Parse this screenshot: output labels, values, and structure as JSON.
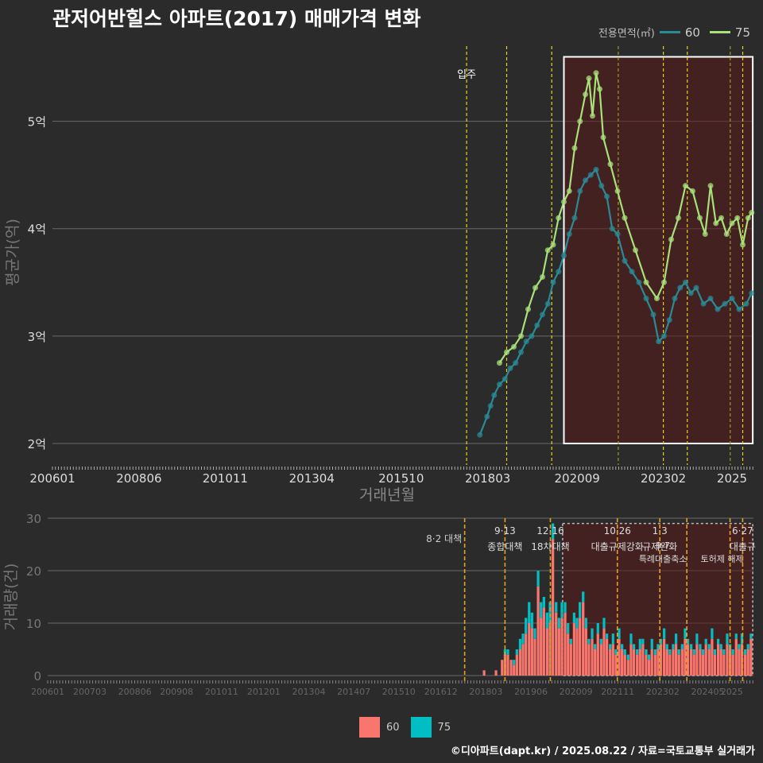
{
  "title": "관저어반힐스 아파트(2017) 매매가격 변화",
  "legend_top": {
    "title": "전용면적(㎡)",
    "items": [
      {
        "label": "60",
        "color": "#2a8a96"
      },
      {
        "label": "75",
        "color": "#a8e07a"
      }
    ]
  },
  "legend_bottom": {
    "items": [
      {
        "label": "60",
        "color": "#f8766d"
      },
      {
        "label": "75",
        "color": "#00bfc4"
      }
    ]
  },
  "footer": "©디아파트(dapt.kr) / 2025.08.22 / 자료=국토교통부 실거래가",
  "chart_data": [
    {
      "type": "line",
      "title": "관저어반힐스 아파트(2017) 매매가격 변화",
      "xlabel": "거래년월",
      "ylabel": "평균가(억)",
      "xlim": [
        2006.0,
        2025.6
      ],
      "ylim": [
        1.8,
        5.7
      ],
      "x_ticks": [
        {
          "label": "200601",
          "value": 2006.0
        },
        {
          "label": "200806",
          "value": 2008.42
        },
        {
          "label": "201011",
          "value": 2010.83
        },
        {
          "label": "201304",
          "value": 2013.25
        },
        {
          "label": "201510",
          "value": 2015.75
        },
        {
          "label": "201803",
          "value": 2018.17
        },
        {
          "label": "202009",
          "value": 2020.67
        },
        {
          "label": "202302",
          "value": 2023.08
        },
        {
          "label": "2025",
          "value": 2025.0
        }
      ],
      "y_ticks": [
        {
          "label": "2억",
          "value": 2
        },
        {
          "label": "3억",
          "value": 3
        },
        {
          "label": "4억",
          "value": 4
        },
        {
          "label": "5억",
          "value": 5
        }
      ],
      "policy_lines": [
        2017.58,
        2018.7,
        2019.96,
        2021.82,
        2023.08,
        2023.75,
        2024.95,
        2025.3
      ],
      "annotation": {
        "text": "입주",
        "x": 2017.58,
        "y": 5.45
      },
      "highlight": {
        "x0": 2020.3,
        "x1": 2025.58,
        "y0": 2.0,
        "y1": 5.6
      },
      "series": [
        {
          "name": "60",
          "color": "#2a8a96",
          "x": [
            2017.95,
            2018.15,
            2018.25,
            2018.35,
            2018.5,
            2018.65,
            2018.8,
            2018.95,
            2019.1,
            2019.25,
            2019.4,
            2019.55,
            2019.7,
            2019.85,
            2020.0,
            2020.15,
            2020.3,
            2020.45,
            2020.6,
            2020.75,
            2020.9,
            2021.05,
            2021.2,
            2021.35,
            2021.5,
            2021.65,
            2021.8,
            2022.0,
            2022.2,
            2022.4,
            2022.6,
            2022.8,
            2022.95,
            2023.1,
            2023.25,
            2023.4,
            2023.55,
            2023.7,
            2023.85,
            2024.0,
            2024.2,
            2024.4,
            2024.6,
            2024.8,
            2025.0,
            2025.2,
            2025.4,
            2025.55
          ],
          "y": [
            2.08,
            2.25,
            2.35,
            2.45,
            2.55,
            2.6,
            2.7,
            2.75,
            2.85,
            2.95,
            3.0,
            3.1,
            3.2,
            3.3,
            3.5,
            3.6,
            3.75,
            3.95,
            4.1,
            4.35,
            4.45,
            4.5,
            4.55,
            4.4,
            4.3,
            4.0,
            3.95,
            3.7,
            3.6,
            3.5,
            3.35,
            3.2,
            2.95,
            3.0,
            3.15,
            3.35,
            3.45,
            3.5,
            3.4,
            3.45,
            3.3,
            3.35,
            3.25,
            3.3,
            3.35,
            3.25,
            3.3,
            3.4
          ]
        },
        {
          "name": "75",
          "color": "#a8e07a",
          "x": [
            2018.5,
            2018.7,
            2018.9,
            2019.1,
            2019.3,
            2019.5,
            2019.7,
            2019.85,
            2020.0,
            2020.15,
            2020.3,
            2020.45,
            2020.6,
            2020.75,
            2020.9,
            2021.0,
            2021.1,
            2021.2,
            2021.3,
            2021.4,
            2021.6,
            2021.8,
            2022.0,
            2022.3,
            2022.6,
            2022.9,
            2023.1,
            2023.3,
            2023.5,
            2023.7,
            2023.9,
            2024.1,
            2024.25,
            2024.4,
            2024.55,
            2024.7,
            2024.85,
            2025.0,
            2025.15,
            2025.3,
            2025.45,
            2025.55
          ],
          "y": [
            2.75,
            2.85,
            2.9,
            3.0,
            3.25,
            3.45,
            3.55,
            3.8,
            3.85,
            4.1,
            4.25,
            4.35,
            4.75,
            5.0,
            5.25,
            5.4,
            5.05,
            5.45,
            5.3,
            4.85,
            4.6,
            4.35,
            4.1,
            3.8,
            3.5,
            3.35,
            3.5,
            3.9,
            4.1,
            4.4,
            4.35,
            4.1,
            3.95,
            4.4,
            4.05,
            4.1,
            3.95,
            4.05,
            4.1,
            3.85,
            4.1,
            4.15
          ]
        }
      ]
    },
    {
      "type": "bar",
      "xlabel": "",
      "ylabel": "거래량(건)",
      "xlim": [
        2006.0,
        2025.6
      ],
      "ylim": [
        0,
        30
      ],
      "x_ticks": [
        {
          "label": "200601",
          "value": 2006.0
        },
        {
          "label": "200703",
          "value": 2007.17
        },
        {
          "label": "200806",
          "value": 2008.42
        },
        {
          "label": "200908",
          "value": 2009.58
        },
        {
          "label": "201011",
          "value": 2010.83
        },
        {
          "label": "201201",
          "value": 2012.0
        },
        {
          "label": "201304",
          "value": 2013.25
        },
        {
          "label": "201407",
          "value": 2014.5
        },
        {
          "label": "201510",
          "value": 2015.75
        },
        {
          "label": "201612",
          "value": 2016.92
        },
        {
          "label": "201803",
          "value": 2018.17
        },
        {
          "label": "201906",
          "value": 2019.42
        },
        {
          "label": "202009",
          "value": 2020.67
        },
        {
          "label": "202111",
          "value": 2021.83
        },
        {
          "label": "202302",
          "value": 2023.08
        },
        {
          "label": "202405",
          "value": 2024.33
        },
        {
          "label": "2025",
          "value": 2025.0
        }
      ],
      "y_ticks": [
        {
          "label": "0",
          "value": 0
        },
        {
          "label": "10",
          "value": 10
        },
        {
          "label": "20",
          "value": 20
        },
        {
          "label": "30",
          "value": 30
        }
      ],
      "policies": [
        {
          "date": "8·2",
          "label": "대책",
          "x": 2017.58
        },
        {
          "date": "9·13",
          "label": "종합대책",
          "x": 2018.7
        },
        {
          "date": "12·16",
          "label": "18차대책",
          "x": 2019.96
        },
        {
          "date": "10·26",
          "label": "대출규제강화",
          "x": 2021.82
        },
        {
          "date": "1·3",
          "label": "규제완화",
          "x": 2023.0
        },
        {
          "date": "9·7",
          "label": "특례대출축소",
          "x": 2023.75
        },
        {
          "date": "",
          "label": "토허제 해제",
          "x": 2024.95
        },
        {
          "date": "6·27",
          "label": "대출규",
          "x": 2025.3
        }
      ],
      "highlight": {
        "x0": 2020.3,
        "x1": 2025.58,
        "y0": 0,
        "y1": 29
      },
      "categories_x": [
        2018.12,
        2018.45,
        2018.62,
        2018.7,
        2018.78,
        2018.87,
        2018.95,
        2019.03,
        2019.12,
        2019.2,
        2019.28,
        2019.37,
        2019.45,
        2019.53,
        2019.62,
        2019.7,
        2019.78,
        2019.87,
        2019.95,
        2020.03,
        2020.12,
        2020.2,
        2020.28,
        2020.37,
        2020.45,
        2020.53,
        2020.62,
        2020.7,
        2020.78,
        2020.87,
        2020.95,
        2021.03,
        2021.12,
        2021.2,
        2021.28,
        2021.37,
        2021.45,
        2021.53,
        2021.62,
        2021.7,
        2021.78,
        2021.87,
        2021.95,
        2022.03,
        2022.12,
        2022.2,
        2022.28,
        2022.37,
        2022.45,
        2022.53,
        2022.62,
        2022.7,
        2022.78,
        2022.87,
        2022.95,
        2023.03,
        2023.12,
        2023.2,
        2023.28,
        2023.37,
        2023.45,
        2023.53,
        2023.62,
        2023.7,
        2023.78,
        2023.87,
        2023.95,
        2024.03,
        2024.12,
        2024.2,
        2024.28,
        2024.37,
        2024.45,
        2024.53,
        2024.62,
        2024.7,
        2024.78,
        2024.87,
        2024.95,
        2025.03,
        2025.12,
        2025.2,
        2025.28,
        2025.37,
        2025.45,
        2025.53
      ],
      "series": [
        {
          "name": "60",
          "color": "#f8766d",
          "values": [
            1,
            1,
            3,
            4,
            4,
            3,
            2,
            4,
            5,
            6,
            8,
            10,
            9,
            7,
            17,
            11,
            13,
            9,
            10,
            26,
            12,
            9,
            11,
            12,
            8,
            6,
            10,
            9,
            11,
            14,
            9,
            6,
            7,
            5,
            8,
            6,
            9,
            7,
            5,
            6,
            4,
            7,
            5,
            4,
            3,
            6,
            5,
            4,
            5,
            6,
            4,
            3,
            5,
            4,
            5,
            6,
            7,
            5,
            4,
            5,
            6,
            4,
            5,
            7,
            6,
            5,
            4,
            6,
            5,
            4,
            6,
            5,
            7,
            4,
            6,
            5,
            4,
            6,
            5,
            4,
            7,
            5,
            6,
            4,
            5,
            7
          ]
        },
        {
          "name": "75",
          "color": "#00bfc4",
          "values": [
            0,
            0,
            0,
            1,
            1,
            0,
            1,
            1,
            2,
            2,
            3,
            4,
            3,
            2,
            3,
            3,
            2,
            3,
            4,
            3,
            2,
            2,
            3,
            2,
            2,
            1,
            2,
            2,
            3,
            2,
            2,
            1,
            2,
            1,
            2,
            1,
            2,
            1,
            1,
            2,
            1,
            2,
            1,
            1,
            1,
            2,
            1,
            1,
            2,
            1,
            1,
            1,
            2,
            1,
            1,
            1,
            2,
            1,
            1,
            1,
            2,
            1,
            1,
            2,
            1,
            1,
            1,
            2,
            1,
            1,
            1,
            1,
            2,
            1,
            1,
            1,
            1,
            2,
            1,
            1,
            1,
            1,
            2,
            1,
            1,
            1
          ]
        }
      ]
    }
  ]
}
